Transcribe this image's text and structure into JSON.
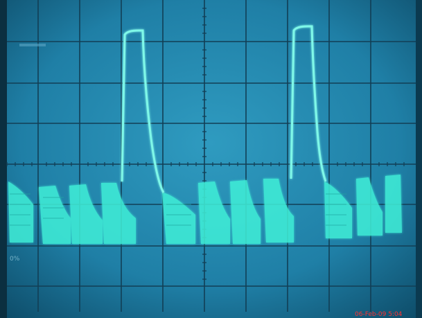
{
  "screen_label": "0%",
  "timestamp": "06-Feb-09 5:04"
}
